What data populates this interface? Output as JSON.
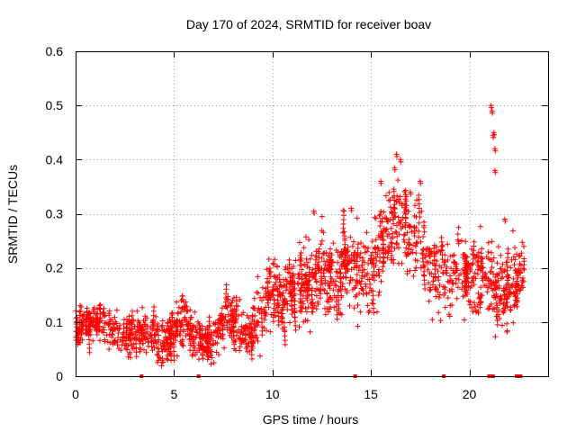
{
  "chart_data": {
    "type": "scatter",
    "title": "Day 170 of 2024, SRMTID for receiver boav",
    "xlabel": "GPS time / hours",
    "ylabel": "SRMTID / TECUs",
    "xlim": [
      0,
      24
    ],
    "ylim": [
      0,
      0.6
    ],
    "grid": true,
    "marker": "+",
    "series_color": "#ff0000",
    "x_ticks": [
      0,
      5,
      10,
      15,
      20
    ],
    "y_ticks": [
      0,
      0.1,
      0.2,
      0.3,
      0.4,
      0.5,
      0.6
    ],
    "x_tick_labels": [
      "0",
      "5",
      "10",
      "15",
      "20"
    ],
    "y_tick_labels": [
      "0",
      "0.1",
      "0.2",
      "0.3",
      "0.4",
      "0.5",
      "0.6"
    ],
    "trend": [
      [
        0.0,
        0.085,
        0.025
      ],
      [
        0.5,
        0.095,
        0.025
      ],
      [
        1.0,
        0.1,
        0.025
      ],
      [
        1.5,
        0.095,
        0.025
      ],
      [
        2.0,
        0.08,
        0.025
      ],
      [
        2.5,
        0.065,
        0.025
      ],
      [
        3.0,
        0.085,
        0.03
      ],
      [
        3.5,
        0.08,
        0.03
      ],
      [
        4.0,
        0.07,
        0.03
      ],
      [
        4.5,
        0.065,
        0.03
      ],
      [
        5.0,
        0.085,
        0.03
      ],
      [
        5.5,
        0.11,
        0.035
      ],
      [
        6.0,
        0.07,
        0.025
      ],
      [
        6.5,
        0.06,
        0.025
      ],
      [
        7.0,
        0.06,
        0.025
      ],
      [
        7.5,
        0.1,
        0.035
      ],
      [
        8.0,
        0.11,
        0.035
      ],
      [
        8.5,
        0.08,
        0.03
      ],
      [
        9.0,
        0.09,
        0.03
      ],
      [
        9.5,
        0.13,
        0.04
      ],
      [
        10.0,
        0.17,
        0.045
      ],
      [
        10.5,
        0.14,
        0.04
      ],
      [
        11.0,
        0.16,
        0.04
      ],
      [
        11.5,
        0.17,
        0.05
      ],
      [
        12.0,
        0.16,
        0.05
      ],
      [
        12.5,
        0.2,
        0.055
      ],
      [
        13.0,
        0.17,
        0.05
      ],
      [
        13.5,
        0.2,
        0.055
      ],
      [
        14.0,
        0.21,
        0.055
      ],
      [
        14.5,
        0.19,
        0.05
      ],
      [
        15.0,
        0.2,
        0.055
      ],
      [
        15.5,
        0.24,
        0.055
      ],
      [
        16.0,
        0.28,
        0.055
      ],
      [
        16.5,
        0.3,
        0.06
      ],
      [
        17.0,
        0.25,
        0.06
      ],
      [
        17.5,
        0.26,
        0.06
      ],
      [
        18.0,
        0.2,
        0.05
      ],
      [
        18.5,
        0.19,
        0.05
      ],
      [
        19.0,
        0.17,
        0.045
      ],
      [
        19.5,
        0.21,
        0.05
      ],
      [
        20.0,
        0.18,
        0.05
      ],
      [
        20.5,
        0.17,
        0.05
      ],
      [
        21.0,
        0.19,
        0.05
      ],
      [
        21.5,
        0.15,
        0.06
      ],
      [
        22.0,
        0.15,
        0.05
      ],
      [
        22.5,
        0.19,
        0.05
      ],
      [
        22.8,
        0.2,
        0.04
      ]
    ],
    "outliers": [
      [
        21.1,
        0.5
      ],
      [
        21.15,
        0.49
      ],
      [
        21.2,
        0.445
      ],
      [
        21.25,
        0.45
      ],
      [
        21.3,
        0.42
      ],
      [
        21.3,
        0.38
      ],
      [
        16.3,
        0.41
      ],
      [
        16.5,
        0.4
      ],
      [
        16.2,
        0.385
      ],
      [
        17.5,
        0.36
      ],
      [
        17.0,
        0.34
      ],
      [
        15.5,
        0.36
      ],
      [
        21.8,
        0.29
      ],
      [
        14.0,
        0.31
      ],
      [
        12.1,
        0.305
      ]
    ],
    "zero_markers": [
      3.35,
      6.25,
      14.2,
      18.7,
      21.0,
      21.1,
      21.2,
      22.4,
      22.5,
      22.6
    ],
    "point_count": 1800
  }
}
